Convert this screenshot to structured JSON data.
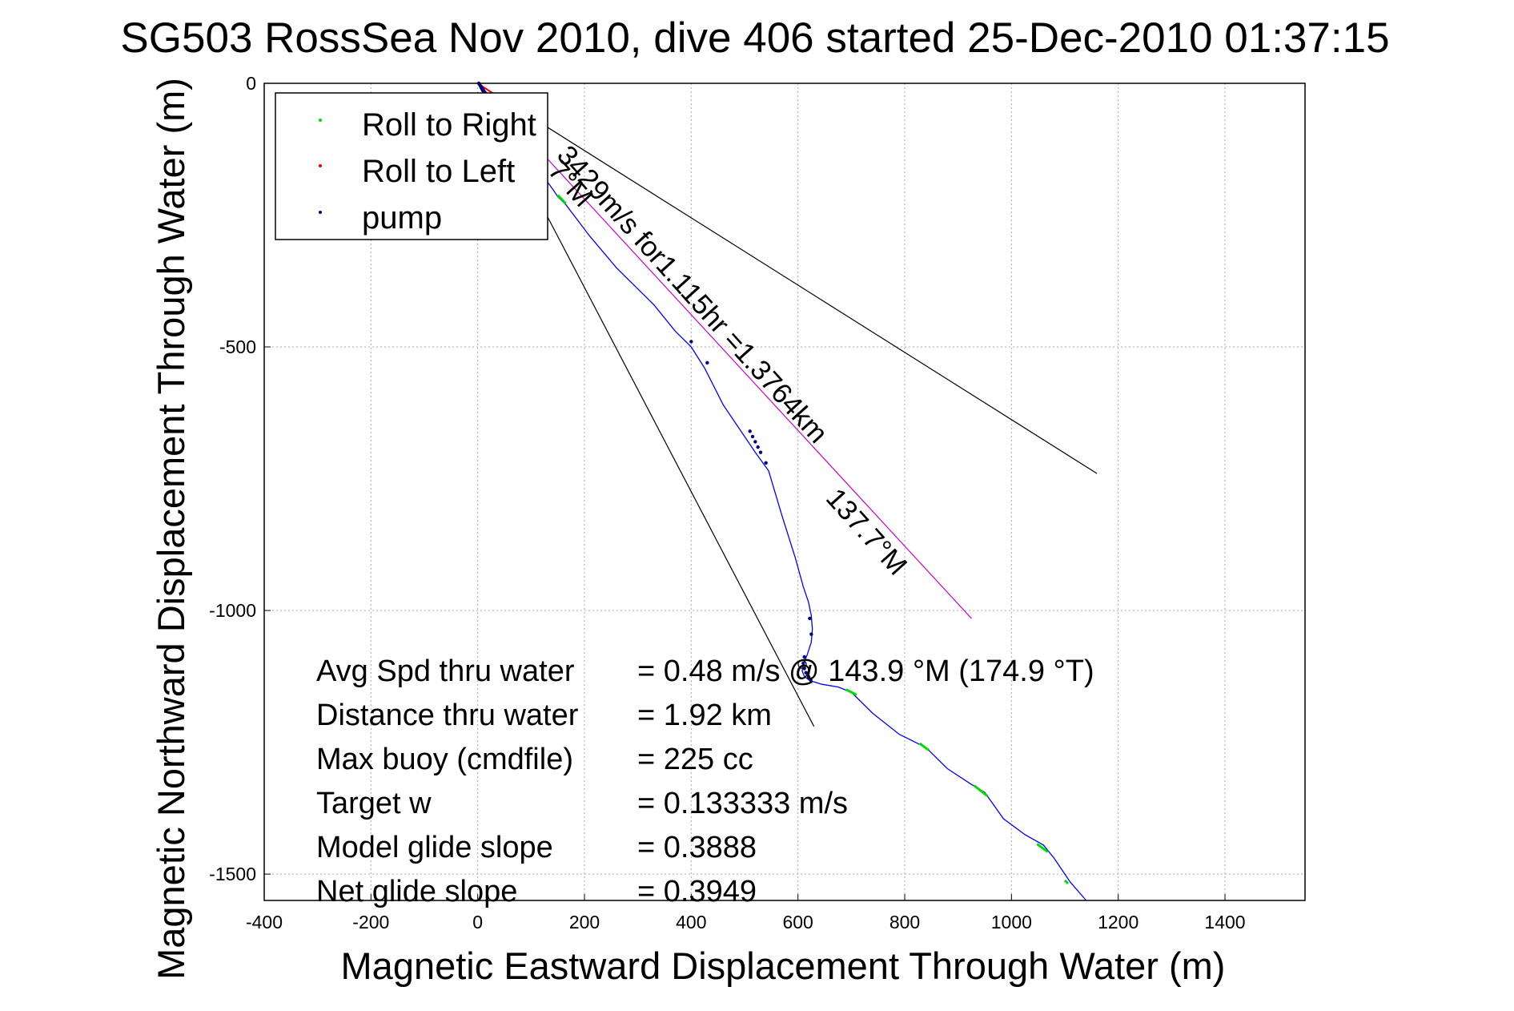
{
  "figure": {
    "title": "SG503 RossSea Nov 2010, dive 406 started 25-Dec-2010 01:37:15"
  },
  "chart_data": {
    "type": "line",
    "title": "SG503 RossSea Nov 2010, dive 406 started 25-Dec-2010 01:37:15",
    "xlabel": "Magnetic Eastward Displacement Through Water (m)",
    "ylabel": "Magnetic Northward Displacement Through Water (m)",
    "xlim": [
      -400,
      1550
    ],
    "ylim": [
      -1550,
      0
    ],
    "xticks": [
      -400,
      -200,
      0,
      200,
      400,
      600,
      800,
      1000,
      1200,
      1400
    ],
    "yticks": [
      0,
      -500,
      -1000,
      -1500
    ],
    "grid": true,
    "legend_location": "top-left",
    "legend": [
      {
        "label": "Roll to Right",
        "color": "#00dd00"
      },
      {
        "label": "Roll to Left",
        "color": "#ff0000"
      },
      {
        "label": "pump",
        "color": "#000088"
      }
    ],
    "colors": {
      "track": "#0000ff",
      "roll_right": "#00dd00",
      "roll_left": "#ff0000",
      "pump": "#000088",
      "current_line": "#cc00cc",
      "cone_lines": "#000000",
      "grid": "#aaaaaa"
    },
    "track": {
      "x": [
        0,
        10,
        30,
        60,
        100,
        140,
        150,
        165,
        210,
        260,
        330,
        370,
        400,
        425,
        460,
        500,
        520,
        545,
        570,
        595,
        610,
        620,
        625,
        627,
        625,
        617,
        610,
        608,
        612,
        622,
        645,
        675,
        700,
        740,
        790,
        830,
        845,
        880,
        925,
        950,
        985,
        1025,
        1060,
        1080,
        1110,
        1140
      ],
      "y": [
        0,
        -12,
        -40,
        -85,
        -145,
        -200,
        -215,
        -230,
        -290,
        -350,
        -420,
        -470,
        -500,
        -540,
        -610,
        -670,
        -700,
        -735,
        -820,
        -900,
        -955,
        -985,
        -1010,
        -1035,
        -1060,
        -1085,
        -1100,
        -1115,
        -1125,
        -1133,
        -1140,
        -1145,
        -1155,
        -1195,
        -1235,
        -1255,
        -1265,
        -1300,
        -1330,
        -1345,
        -1395,
        -1425,
        -1445,
        -1470,
        -1515,
        -1560
      ]
    },
    "roll_right_segments": [
      {
        "x": [
          150,
          165
        ],
        "y": [
          -212,
          -228
        ]
      },
      {
        "x": [
          690,
          710
        ],
        "y": [
          -1150,
          -1160
        ]
      },
      {
        "x": [
          828,
          845
        ],
        "y": [
          -1252,
          -1265
        ]
      },
      {
        "x": [
          930,
          955
        ],
        "y": [
          -1332,
          -1352
        ]
      },
      {
        "x": [
          1048,
          1068
        ],
        "y": [
          -1443,
          -1458
        ]
      },
      {
        "x": [
          1100,
          1106
        ],
        "y": [
          -1512,
          -1518
        ]
      }
    ],
    "roll_left_segments": [
      {
        "x": [
          0,
          30
        ],
        "y": [
          0,
          -20
        ]
      }
    ],
    "pump_points": {
      "x": [
        2,
        4,
        6,
        8,
        10,
        12,
        14,
        16,
        18,
        20,
        22,
        24,
        26,
        28,
        400,
        430,
        510,
        515,
        520,
        525,
        530,
        540,
        622,
        625,
        612,
        610,
        612,
        615,
        620,
        624
      ],
      "y": [
        0,
        -3,
        -6,
        -9,
        -12,
        -15,
        -18,
        -21,
        -24,
        -27,
        -30,
        -33,
        -36,
        -39,
        -490,
        -530,
        -660,
        -670,
        -680,
        -690,
        -700,
        -720,
        -1015,
        -1045,
        -1088,
        -1100,
        -1110,
        -1118,
        -1126,
        -1132
      ]
    },
    "surface_marker": {
      "x": 608,
      "y": -1102
    },
    "current_line": {
      "x": [
        0,
        925
      ],
      "y": [
        0,
        -1015
      ]
    },
    "cone_lines": [
      {
        "x": [
          0,
          1160
        ],
        "y": [
          0,
          -740
        ]
      },
      {
        "x": [
          0,
          630
        ],
        "y": [
          0,
          -1220
        ]
      }
    ],
    "annotations": {
      "current_text": "3429m/s for1.115hr =1.3764km",
      "current_heading": "137.7°M",
      "partial_heading": "7°M"
    },
    "stats": [
      {
        "label": "Avg Spd thru water",
        "value": "=  0.48 m/s @ 143.9 °M (174.9 °T)"
      },
      {
        "label": "Distance thru water",
        "value": "=  1.92 km"
      },
      {
        "label": "Max buoy (cmdfile)",
        "value": "= 225 cc"
      },
      {
        "label": "Target w",
        "value": "= 0.133333 m/s"
      },
      {
        "label": "Model glide slope",
        "value": "= 0.3888"
      },
      {
        "label": "Net glide slope",
        "value": "= 0.3949"
      }
    ]
  }
}
